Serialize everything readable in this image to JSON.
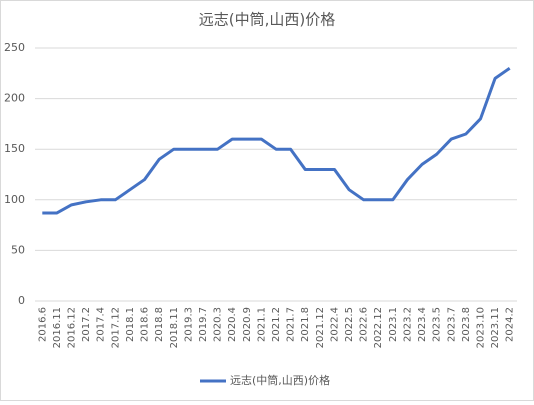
{
  "chart_data": {
    "type": "line",
    "title": "远志(中筒,山西)价格",
    "categories": [
      "2016.6",
      "2016.11",
      "2016.12",
      "2017.2",
      "2017.4",
      "2017.12",
      "2018.1",
      "2018.6",
      "2018.8",
      "2018.11",
      "2019.3",
      "2019.7",
      "2020.3",
      "2020.4",
      "2020.9",
      "2021.1",
      "2021.2",
      "2021.7",
      "2021.8",
      "2021.12",
      "2022.4",
      "2022.5",
      "2022.6",
      "2022.12",
      "2023.1",
      "2023.2",
      "2023.4",
      "2023.5",
      "2023.7",
      "2023.8",
      "2023.10",
      "2023.11",
      "2024.2"
    ],
    "series": [
      {
        "name": "远志(中筒,山西)价格",
        "color": "#4472c4",
        "values": [
          87,
          87,
          95,
          98,
          100,
          100,
          110,
          120,
          140,
          150,
          150,
          150,
          150,
          160,
          160,
          160,
          150,
          150,
          130,
          130,
          130,
          110,
          100,
          100,
          100,
          120,
          135,
          145,
          160,
          165,
          180,
          220,
          230
        ]
      }
    ],
    "ylim": [
      0,
      250
    ],
    "yticks": [
      0,
      50,
      100,
      150,
      200,
      250
    ],
    "grid": true,
    "legend": "bottom"
  }
}
